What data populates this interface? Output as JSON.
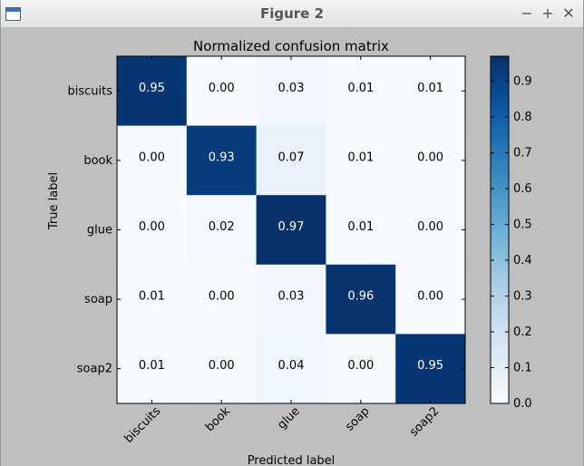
{
  "window": {
    "title": "Figure 2",
    "minimize_label": "−",
    "maximize_label": "+",
    "close_label": "✕",
    "icon": "window-icon"
  },
  "chart_data": {
    "type": "heatmap",
    "title": "Normalized confusion matrix",
    "xlabel": "Predicted label",
    "ylabel": "True label",
    "x_categories": [
      "biscuits",
      "book",
      "glue",
      "soap",
      "soap2"
    ],
    "y_categories": [
      "biscuits",
      "book",
      "glue",
      "soap",
      "soap2"
    ],
    "values": [
      [
        0.95,
        0.0,
        0.03,
        0.01,
        0.01
      ],
      [
        0.0,
        0.93,
        0.07,
        0.01,
        0.0
      ],
      [
        0.0,
        0.02,
        0.97,
        0.01,
        0.0
      ],
      [
        0.01,
        0.0,
        0.03,
        0.96,
        0.0
      ],
      [
        0.01,
        0.0,
        0.04,
        0.0,
        0.95
      ]
    ],
    "colormap": "Blues",
    "colormap_stops": [
      "#f7fbff",
      "#deebf7",
      "#c6dbef",
      "#9ecae1",
      "#6baed6",
      "#4292c6",
      "#2171b5",
      "#08519c",
      "#08306b"
    ],
    "vmin": 0.0,
    "vmax": 0.97,
    "colorbar_ticks": [
      "0.0",
      "0.1",
      "0.2",
      "0.3",
      "0.4",
      "0.5",
      "0.6",
      "0.7",
      "0.8",
      "0.9"
    ],
    "text_color_dark_cells": "#ffffff",
    "text_color_light_cells": "#000000"
  }
}
